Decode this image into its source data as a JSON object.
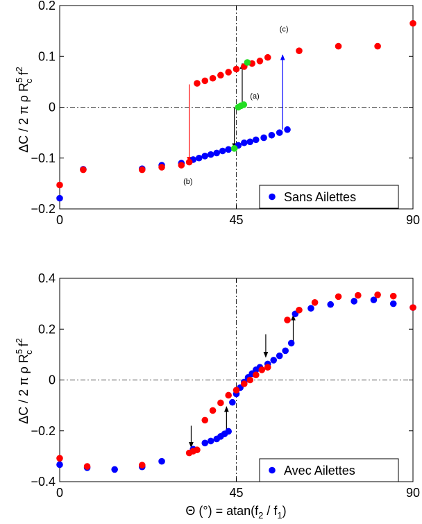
{
  "colors": {
    "blue": "#0000ff",
    "red": "#ff0000",
    "green": "#22dd22",
    "black": "#000000"
  },
  "chart_data": [
    {
      "type": "scatter",
      "title": "",
      "xlabel": "",
      "ylabel_parts": [
        "ΔC / 2 π ρ R",
        "5",
        "c",
        " f",
        "2"
      ],
      "xlim": [
        0,
        90
      ],
      "ylim": [
        -0.2,
        0.2
      ],
      "xticks": [
        0,
        45,
        90
      ],
      "xtick_labels": [
        "0",
        "45",
        "90"
      ],
      "yticks": [
        -0.2,
        -0.1,
        0,
        0.1,
        0.2
      ],
      "ytick_labels": [
        "−0.2",
        "−0.1",
        "0",
        "0.1",
        "0.2"
      ],
      "reference_lines": {
        "x": 45,
        "y": 0
      },
      "legend": {
        "position": "bottom-right",
        "entries": [
          "Sans Ailettes"
        ]
      },
      "annotations": [
        {
          "text": "(a)",
          "x": 48.5,
          "y": 0.017
        },
        {
          "text": "(b)",
          "x": 31.5,
          "y": -0.151
        },
        {
          "text": "(c)",
          "x": 56,
          "y": 0.149
        }
      ],
      "series": [
        {
          "name": "Sans Ailettes",
          "color": "blue",
          "points": [
            [
              0,
              -0.179
            ],
            [
              6,
              -0.122
            ],
            [
              21,
              -0.121
            ],
            [
              26,
              -0.114
            ],
            [
              31,
              -0.11
            ],
            [
              34,
              -0.103
            ],
            [
              35.5,
              -0.1
            ],
            [
              37,
              -0.096
            ],
            [
              38.5,
              -0.093
            ],
            [
              40,
              -0.09
            ],
            [
              41.5,
              -0.086
            ],
            [
              43,
              -0.083
            ],
            [
              45.5,
              -0.075
            ],
            [
              47,
              -0.07
            ],
            [
              48.5,
              -0.068
            ],
            [
              50,
              -0.064
            ],
            [
              52,
              -0.06
            ],
            [
              54,
              -0.055
            ],
            [
              56,
              -0.05
            ],
            [
              58,
              -0.044
            ]
          ]
        },
        {
          "color": "red",
          "points": [
            [
              0,
              -0.153
            ],
            [
              6,
              -0.123
            ],
            [
              21,
              -0.123
            ],
            [
              26,
              -0.118
            ],
            [
              31,
              -0.114
            ],
            [
              33,
              -0.108
            ],
            [
              35,
              0.047
            ],
            [
              37,
              0.052
            ],
            [
              39,
              0.057
            ],
            [
              41,
              0.063
            ],
            [
              43,
              0.069
            ],
            [
              45,
              0.075
            ],
            [
              47,
              0.08
            ],
            [
              49,
              0.086
            ],
            [
              51,
              0.091
            ],
            [
              53,
              0.098
            ],
            [
              61,
              0.111
            ],
            [
              71,
              0.12
            ],
            [
              81,
              0.12
            ],
            [
              90,
              0.165
            ]
          ]
        },
        {
          "color": "green",
          "points": [
            [
              44.5,
              -0.081
            ],
            [
              45.5,
              0.0
            ],
            [
              46.2,
              0.003
            ],
            [
              46.9,
              0.005
            ],
            [
              47.8,
              0.088
            ]
          ]
        }
      ],
      "arrows": [
        {
          "color": "red",
          "x": 33,
          "y_from": 0.045,
          "y_to": -0.108
        },
        {
          "color": "black",
          "x": 44.5,
          "y_from": -0.001,
          "y_to": -0.081
        },
        {
          "color": "black",
          "x": 46.5,
          "y_from": 0.008,
          "y_to": 0.086
        },
        {
          "color": "blue",
          "x": 56.8,
          "y_from": -0.044,
          "y_to": 0.103
        }
      ]
    },
    {
      "type": "scatter",
      "title": "",
      "xlabel_parts": [
        "Θ (°) = atan(f",
        "2",
        " / f",
        "1",
        ")"
      ],
      "ylabel_parts": [
        "ΔC / 2 π ρ R",
        "5",
        "c",
        " f",
        "2"
      ],
      "xlim": [
        0,
        90
      ],
      "ylim": [
        -0.4,
        0.4
      ],
      "xticks": [
        0,
        45,
        90
      ],
      "xtick_labels": [
        "0",
        "45",
        "90"
      ],
      "yticks": [
        -0.4,
        -0.2,
        0,
        0.2,
        0.4
      ],
      "ytick_labels": [
        "−0.4",
        "−0.2",
        "0",
        "0.2",
        "0.4"
      ],
      "reference_lines": {
        "x": 45,
        "y": 0
      },
      "legend": {
        "position": "bottom-right",
        "entries": [
          "Avec Ailettes"
        ]
      },
      "annotations": [],
      "series": [
        {
          "name": "Avec Ailettes",
          "color": "blue",
          "points": [
            [
              0,
              -0.333
            ],
            [
              7,
              -0.345
            ],
            [
              14,
              -0.352
            ],
            [
              21,
              -0.342
            ],
            [
              26,
              -0.32
            ],
            [
              34,
              -0.272
            ],
            [
              37,
              -0.248
            ],
            [
              38.5,
              -0.24
            ],
            [
              40,
              -0.232
            ],
            [
              41,
              -0.222
            ],
            [
              42,
              -0.212
            ],
            [
              43,
              -0.202
            ],
            [
              44,
              -0.088
            ],
            [
              45,
              -0.055
            ],
            [
              46,
              -0.03
            ],
            [
              47,
              -0.008
            ],
            [
              48,
              0.01
            ],
            [
              49,
              0.025
            ],
            [
              50,
              0.04
            ],
            [
              51,
              0.05
            ],
            [
              53,
              0.063
            ],
            [
              54.5,
              0.078
            ],
            [
              56,
              0.095
            ],
            [
              57.5,
              0.115
            ],
            [
              59,
              0.145
            ],
            [
              60,
              0.26
            ],
            [
              64,
              0.282
            ],
            [
              69,
              0.297
            ],
            [
              75,
              0.31
            ],
            [
              80,
              0.315
            ],
            [
              85,
              0.3
            ],
            [
              90,
              0.285
            ]
          ]
        },
        {
          "color": "red",
          "points": [
            [
              0,
              -0.308
            ],
            [
              7,
              -0.34
            ],
            [
              21,
              -0.335
            ],
            [
              33,
              -0.287
            ],
            [
              34,
              -0.28
            ],
            [
              35,
              -0.275
            ],
            [
              37,
              -0.158
            ],
            [
              39,
              -0.12
            ],
            [
              41,
              -0.09
            ],
            [
              43,
              -0.06
            ],
            [
              45,
              -0.04
            ],
            [
              47,
              -0.015
            ],
            [
              48.5,
              0.0
            ],
            [
              50,
              0.02
            ],
            [
              51.5,
              0.04
            ],
            [
              53,
              0.05
            ],
            [
              58,
              0.236
            ],
            [
              61,
              0.275
            ],
            [
              65,
              0.305
            ],
            [
              71,
              0.328
            ],
            [
              76,
              0.333
            ],
            [
              81,
              0.335
            ],
            [
              85,
              0.33
            ],
            [
              90,
              0.285
            ]
          ]
        }
      ],
      "arrows": [
        {
          "color": "black",
          "x": 33.5,
          "y_from": -0.18,
          "y_to": -0.265
        },
        {
          "color": "black",
          "x": 42.5,
          "y_from": -0.2,
          "y_to": -0.105
        },
        {
          "color": "black",
          "x": 52.5,
          "y_from": 0.18,
          "y_to": 0.09
        },
        {
          "color": "black",
          "x": 59.5,
          "y_from": 0.15,
          "y_to": 0.255
        }
      ]
    }
  ]
}
